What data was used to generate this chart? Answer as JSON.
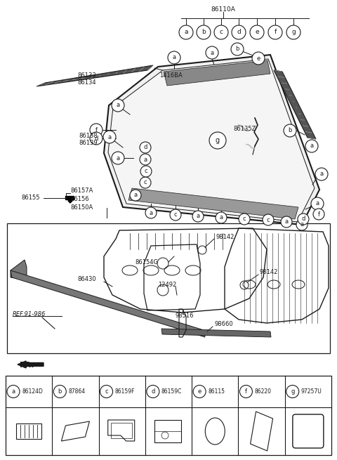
{
  "bg_color": "#ffffff",
  "line_color": "#1a1a1a",
  "fig_width": 4.8,
  "fig_height": 6.55,
  "dpi": 100,
  "legend_items": [
    {
      "letter": "a",
      "part": "86124D"
    },
    {
      "letter": "b",
      "part": "87864"
    },
    {
      "letter": "c",
      "part": "86159F"
    },
    {
      "letter": "d",
      "part": "86159C"
    },
    {
      "letter": "e",
      "part": "86115"
    },
    {
      "letter": "f",
      "part": "86220"
    },
    {
      "letter": "g",
      "part": "97257U"
    }
  ]
}
